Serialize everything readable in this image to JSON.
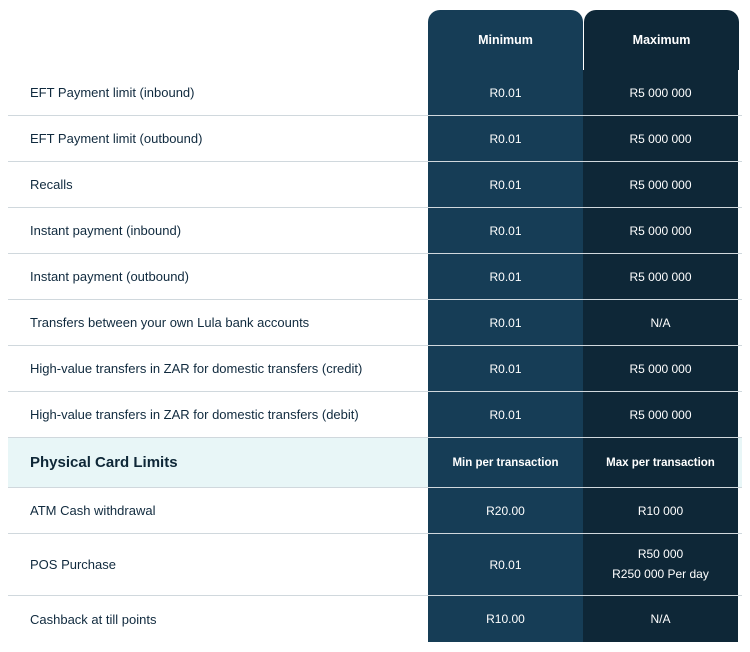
{
  "header": {
    "min": "Minimum",
    "max": "Maximum"
  },
  "rows": [
    {
      "label": "EFT Payment limit (inbound)",
      "min": "R0.01",
      "max": "R5 000 000"
    },
    {
      "label": "EFT Payment limit (outbound)",
      "min": "R0.01",
      "max": "R5 000 000"
    },
    {
      "label": "Recalls",
      "min": "R0.01",
      "max": "R5 000 000"
    },
    {
      "label": "Instant payment (inbound)",
      "min": "R0.01",
      "max": "R5 000 000"
    },
    {
      "label": "Instant payment (outbound)",
      "min": "R0.01",
      "max": "R5 000 000"
    },
    {
      "label": "Transfers between your own Lula bank accounts",
      "min": "R0.01",
      "max": "N/A"
    },
    {
      "label": "High-value transfers in ZAR for domestic transfers (credit)",
      "min": "R0.01",
      "max": "R5 000 000"
    },
    {
      "label": "High-value transfers in ZAR for domestic transfers (debit)",
      "min": "R0.01",
      "max": "R5 000 000"
    }
  ],
  "section": {
    "label": "Physical Card Limits",
    "min": "Min per transaction",
    "max": "Max per transaction"
  },
  "card_rows": {
    "atm": {
      "label": "ATM Cash withdrawal",
      "min": "R20.00",
      "max": "R10 000"
    },
    "pos": {
      "label": "POS Purchase",
      "min": "R0.01",
      "max1": "R50 000",
      "max2": "R250 000 Per day"
    },
    "cashback": {
      "label": "Cashback at till points",
      "min": "R10.00",
      "max": "N/A"
    }
  },
  "colors": {
    "col_min_bg": "#163d56",
    "col_max_bg": "#0e2737",
    "section_bg": "#e8f6f7",
    "border": "#d0d8dd",
    "text_dark": "#102a3e"
  }
}
